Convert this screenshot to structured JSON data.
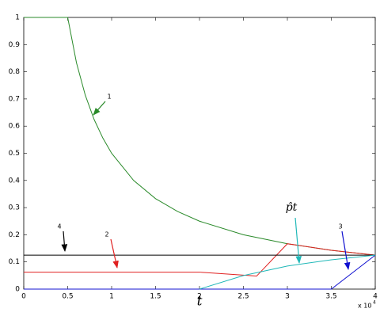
{
  "chart_data": {
    "type": "line",
    "x_label": "t",
    "x_multiplier": "x 10",
    "x_multiplier_exponent": "4",
    "xlim": [
      0,
      40000
    ],
    "xticks": [
      {
        "value": 0,
        "label": "0"
      },
      {
        "value": 5000,
        "label": "0.5"
      },
      {
        "value": 10000,
        "label": "1"
      },
      {
        "value": 15000,
        "label": "1.5"
      },
      {
        "value": 20000,
        "label": "2"
      },
      {
        "value": 25000,
        "label": "2.5"
      },
      {
        "value": 30000,
        "label": "3"
      },
      {
        "value": 35000,
        "label": "3.5"
      },
      {
        "value": 40000,
        "label": "4"
      }
    ],
    "ylim": [
      0,
      1
    ],
    "yticks": [
      0,
      0.1,
      0.2,
      0.3,
      0.4,
      0.5,
      0.6,
      0.7,
      0.8,
      0.9,
      1
    ],
    "grid": false,
    "series": [
      {
        "name": "1",
        "color": "#2a8a2a",
        "x": [
          0,
          5000,
          6000,
          7000,
          8000,
          9000,
          10000,
          12500,
          15000,
          17500,
          20000,
          25000,
          30000,
          35000,
          40000
        ],
        "values": [
          1,
          1,
          0.833,
          0.714,
          0.625,
          0.556,
          0.5,
          0.4,
          0.333,
          0.286,
          0.25,
          0.2,
          0.167,
          0.143,
          0.125
        ]
      },
      {
        "name": "2",
        "color": "#e02020",
        "x": [
          0,
          20000,
          26500,
          30000,
          35000,
          40000
        ],
        "values": [
          0.0625,
          0.0625,
          0.048,
          0.167,
          0.143,
          0.125
        ]
      },
      {
        "name": "3",
        "color": "#1010d0",
        "x": [
          0,
          35000,
          40000
        ],
        "values": [
          0,
          0,
          0.125
        ]
      },
      {
        "name": "4",
        "color": "#000000",
        "x": [
          0,
          40000
        ],
        "values": [
          0.125,
          0.125
        ]
      },
      {
        "name": "p̂t",
        "color": "#20b8b8",
        "x": [
          20000,
          25000,
          30000,
          35000,
          40000
        ],
        "values": [
          0,
          0.05,
          0.085,
          0.108,
          0.125
        ]
      }
    ]
  }
}
